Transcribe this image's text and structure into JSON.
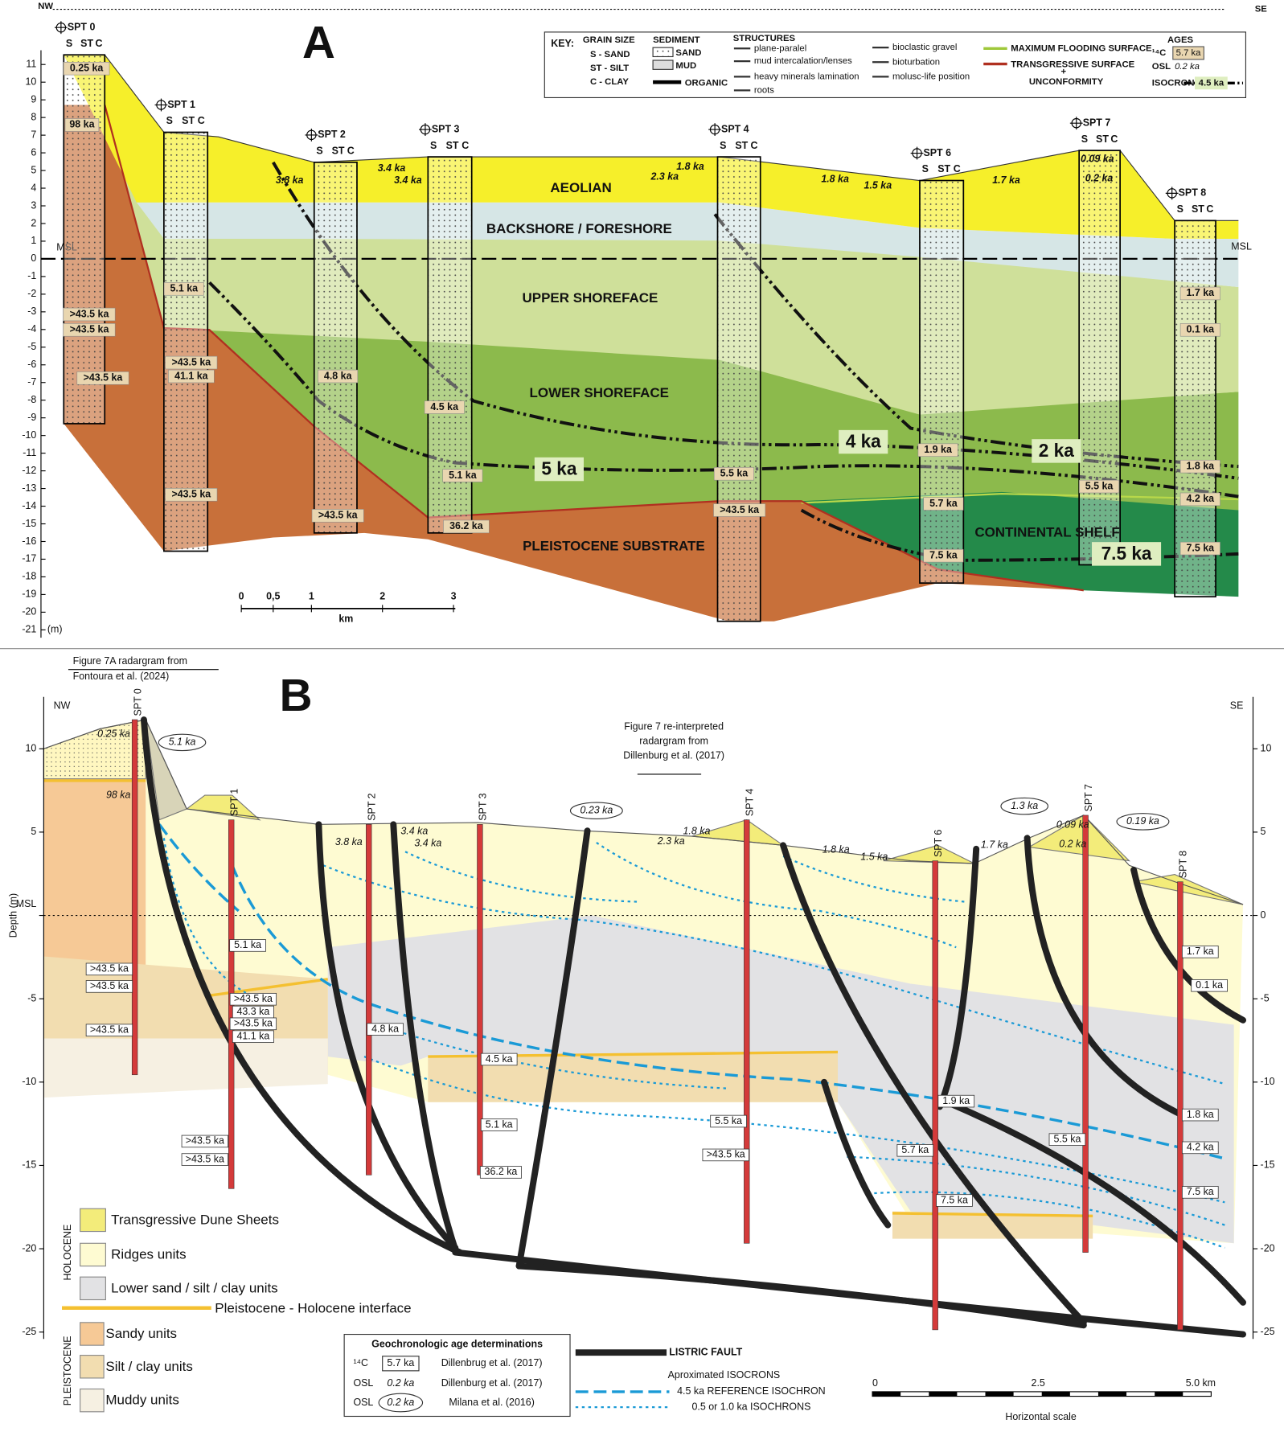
{
  "panel_a": {
    "label": "A",
    "nw": "NW",
    "se": "SE",
    "depth_ticks": [
      11,
      10,
      9,
      8,
      7,
      6,
      5,
      4,
      3,
      2,
      1,
      0,
      -1,
      -2,
      -3,
      -4,
      -5,
      -6,
      -7,
      -8,
      -9,
      -10,
      -11,
      -12,
      -13,
      -14,
      -15,
      -16,
      -17,
      -18,
      -19,
      -20,
      -21
    ],
    "depth_unit": "(m)",
    "msl": "MSL",
    "column_labels": [
      "S",
      "ST",
      "C"
    ],
    "boreholes": [
      "SPT 0",
      "SPT 1",
      "SPT 2",
      "SPT 3",
      "SPT 4",
      "SPT 6",
      "SPT 7",
      "SPT 8"
    ],
    "units": [
      "AEOLIAN",
      "BACKSHORE / FORESHORE",
      "UPPER SHOREFACE",
      "LOWER SHOREFACE",
      "PLEISTOCENE SUBSTRATE",
      "CONTINENTAL SHELF"
    ],
    "isochrons": [
      "5 ka",
      "4 ka",
      "2 ka",
      "7.5 ka"
    ],
    "ages": [
      "0.25 ka",
      "98 ka",
      ">43.5 ka",
      ">43.5 ka",
      ">43.5 ka",
      "5.1 ka",
      ">43.5 ka",
      "41.1 ka",
      ">43.5 ka",
      "3.8 ka",
      "3.4 ka",
      "3.4 ka",
      "4.8 ka",
      ">43.5 ka",
      "4.5 ka",
      "5.1 ka",
      "36.2 ka",
      "2.3 ka",
      "1.8 ka",
      "5.5 ka",
      ">43.5 ka",
      "1.8 ka",
      "1.5 ka",
      "1.9 ka",
      "5.7 ka",
      "7.5 ka",
      "1.7 ka",
      "0.09 ka",
      "0.2 ka",
      "5.5 ka",
      "1.7 ka",
      "0.1 ka",
      "1.8 ka",
      "4.2 ka",
      "7.5 ka"
    ],
    "scale": {
      "ticks": [
        "0",
        "0,5",
        "1",
        "2",
        "3"
      ],
      "unit": "km"
    },
    "key": {
      "title": "KEY:",
      "grain_size": {
        "title": "GRAIN SIZE",
        "items": [
          "S - SAND",
          "ST - SILT",
          "C - CLAY"
        ]
      },
      "sediment": {
        "title": "SEDIMENT",
        "items": [
          "SAND",
          "MUD",
          "ORGANIC"
        ]
      },
      "structures": {
        "title": "STRUCTURES",
        "items": [
          "plane-paralel",
          "mud intercalation/lenses",
          "heavy minerals lamination",
          "roots",
          "bioclastic gravel",
          "bioturbation",
          "molusc-life position"
        ]
      },
      "surfaces": [
        "MAXIMUM FLOODING SURFACE",
        "TRANSGRESSIVE SURFACE",
        "+",
        "UNCONFORMITY"
      ],
      "ages": {
        "title": "AGES",
        "c14": "¹⁴C",
        "c14_example": "5.7 ka",
        "osl": "OSL",
        "osl_example": "0.2 ka",
        "isochron": "ISOCRON",
        "isochron_example": "4.5 ka"
      }
    }
  },
  "panel_b": {
    "label": "B",
    "nw": "NW",
    "se": "SE",
    "y_label": "Depth (m)",
    "yticks_left": [
      10,
      5,
      {
        "value": 0,
        "label": "MSL"
      },
      -5,
      -10,
      -15,
      -20,
      -25
    ],
    "yticks_right": [
      10,
      5,
      0,
      -5,
      -10,
      -15,
      -20,
      -25
    ],
    "notes": {
      "fontoura": [
        "Figure 7A radargram from",
        "Fontoura et al. (2024)"
      ],
      "dillenburg": [
        "Figure 7 re-interpreted",
        "radargram from",
        "Dillenburg et al. (2017)"
      ]
    },
    "boreholes": [
      "SPT 0",
      "SPT 1",
      "SPT 2",
      "SPT 3",
      "SPT 4",
      "SPT 6",
      "SPT 7",
      "SPT 8"
    ],
    "ages": [
      "0.25 ka",
      "5.1 ka",
      "98 ka",
      ">43.5 ka",
      ">43.5 ka",
      ">43.5 ka",
      "5.1 ka",
      ">43.5 ka",
      "43.3 ka",
      ">43.5 ka",
      "41.1 ka",
      ">43.5 ka",
      ">43.5 ka",
      "3.8 ka",
      "3.4 ka",
      "3.4 ka",
      "4.8 ka",
      "4.5 ka",
      "5.1 ka",
      "36.2 ka",
      "0.23 ka",
      "1.8 ka",
      "2.3 ka",
      "5.5 ka",
      ">43.5 ka",
      "1.8 ka",
      "1.5 ka",
      "1.7 ka",
      "1.9 ka",
      "5.7 ka",
      "7.5 ka",
      "1.3 ka",
      "0.09 ka",
      "0.2 ka",
      "5.5 ka",
      "0.19 ka",
      "1.7 ka",
      "0.1 ka",
      "1.8 ka",
      "4.2 ka",
      "7.5 ka"
    ],
    "legend": {
      "holocene": "HOLOCENE",
      "pleistocene": "PLEISTOCENE",
      "items": [
        "Transgressive Dune Sheets",
        "Ridges units",
        "Lower sand / silt / clay units",
        "Pleistocene - Holocene interface",
        "Sandy units",
        "Silt / clay units",
        "Muddy units"
      ]
    },
    "geochron": {
      "title": "Geochronologic age determinations",
      "rows": [
        [
          "¹⁴C",
          "5.7 ka",
          "Dillenbrug et al. (2017)"
        ],
        [
          "OSL",
          "0.2 ka",
          "Dillenburg et al. (2017)"
        ],
        [
          "OSL",
          "0.2 ka",
          "Milana et al. (2016)"
        ]
      ]
    },
    "faults": {
      "fault": "LISTRIC FAULT",
      "isochrons": "Aproximated ISOCRONS",
      "reference": "4.5 ka REFERENCE ISOCHRON",
      "minor": "0.5 or 1.0 ka ISOCHRONS"
    },
    "scale": {
      "ticks": [
        "0",
        "2.5",
        "5.0 km"
      ],
      "label": "Horizontal scale"
    }
  }
}
